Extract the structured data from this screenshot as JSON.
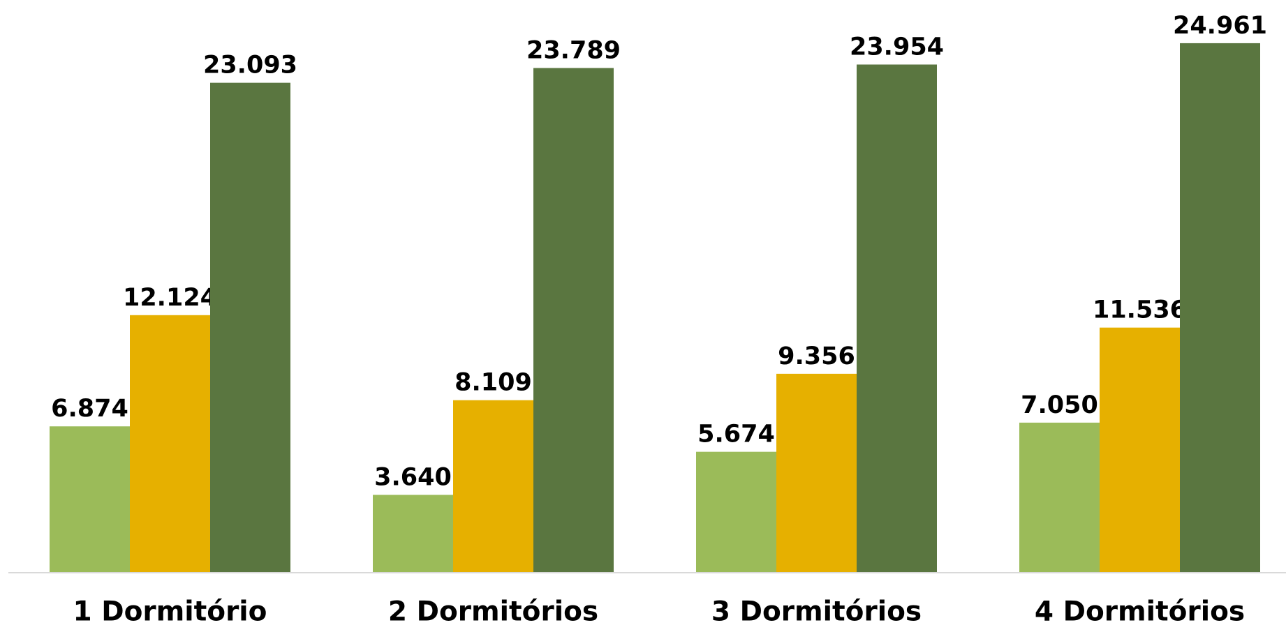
{
  "chart_data": {
    "type": "bar",
    "categories": [
      "1 Dormitório",
      "2 Dormitórios",
      "3 Dormitórios",
      "4 Dormitórios"
    ],
    "series": [
      {
        "color": "#9bbb59",
        "values": [
          6874,
          3640,
          5674,
          7050
        ],
        "value_labels": [
          "6.874",
          "3.640",
          "5.674",
          "7.050"
        ]
      },
      {
        "color": "#e6b000",
        "values": [
          12124,
          8109,
          9356,
          11536
        ],
        "value_labels": [
          "12.124",
          "8.109",
          "9.356",
          "11.536"
        ]
      },
      {
        "color": "#5a7640",
        "values": [
          23093,
          23789,
          23954,
          24961
        ],
        "value_labels": [
          "23.093",
          "23.789",
          "23.954",
          "24.961"
        ]
      }
    ],
    "ylim": [
      0,
      27000
    ]
  }
}
